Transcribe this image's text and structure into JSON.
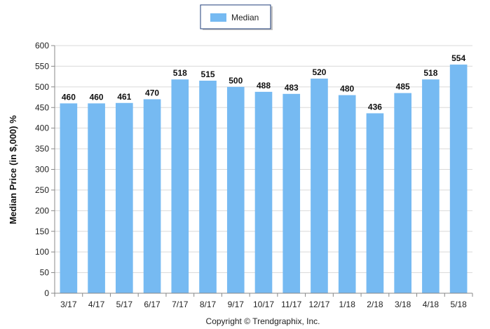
{
  "chart_data": {
    "type": "bar",
    "categories": [
      "3/17",
      "4/17",
      "5/17",
      "6/17",
      "7/17",
      "8/17",
      "9/17",
      "10/17",
      "11/17",
      "12/17",
      "1/18",
      "2/18",
      "3/18",
      "4/18",
      "5/18"
    ],
    "series": [
      {
        "name": "Median",
        "values": [
          460,
          460,
          461,
          470,
          518,
          515,
          500,
          488,
          483,
          520,
          480,
          436,
          485,
          518,
          554
        ]
      }
    ],
    "data_labels": [
      "460",
      "460",
      "461",
      "470",
      "518",
      "515",
      "500",
      "488",
      "483",
      "520",
      "480",
      "436",
      "485",
      "518",
      "554"
    ],
    "yticks": [
      "0",
      "50",
      "100",
      "150",
      "200",
      "250",
      "300",
      "350",
      "400",
      "450",
      "500",
      "550",
      "600"
    ],
    "ylabel": "Median Price (in $,000) %",
    "xlabel": "",
    "ylim": [
      0,
      600
    ],
    "grid": true,
    "legend_position": "top-center",
    "bar_color": "#76BAF2"
  },
  "caption": "Copyright © Trendgraphix, Inc."
}
